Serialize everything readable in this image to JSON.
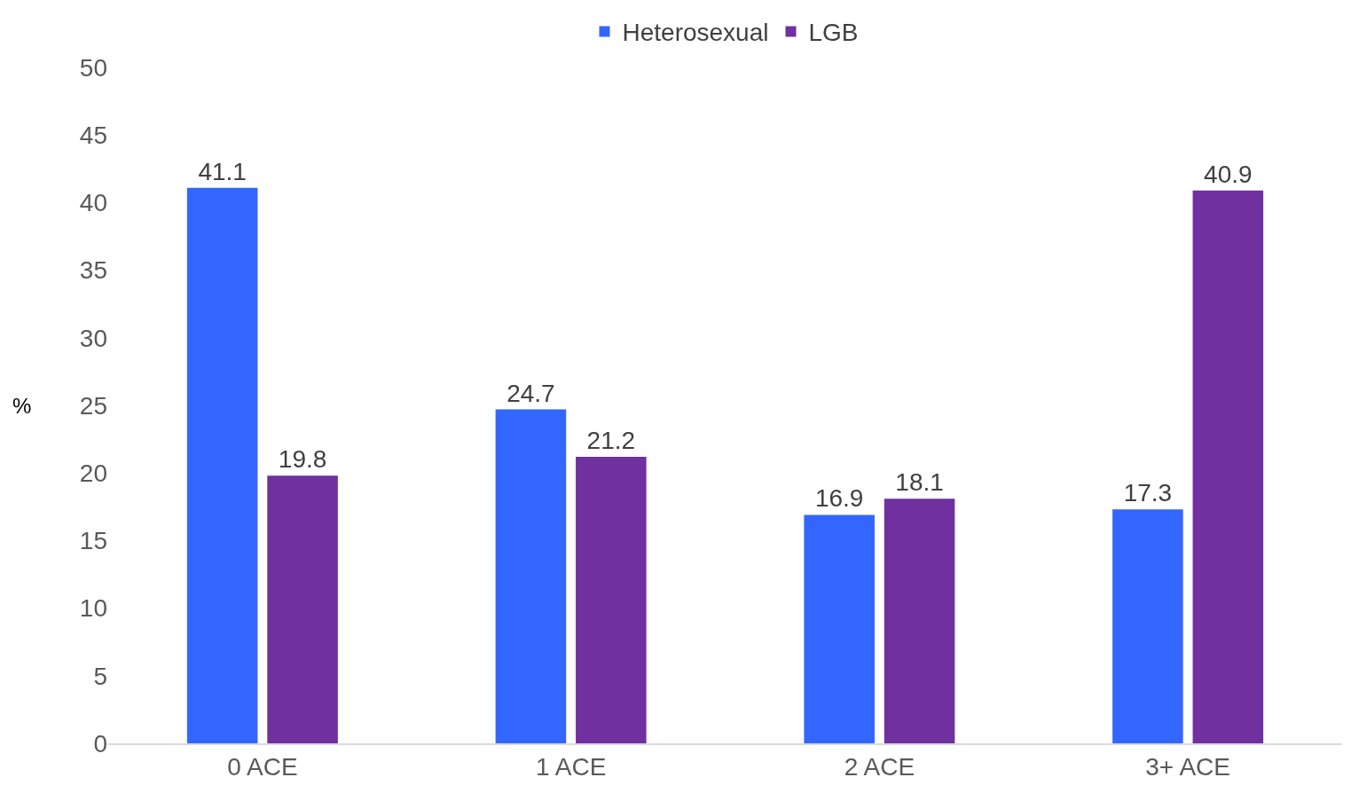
{
  "chart_data": {
    "type": "bar",
    "ylabel": "%",
    "categories": [
      "0 ACE",
      "1 ACE",
      "2 ACE",
      "3+ ACE"
    ],
    "series": [
      {
        "name": "Heterosexual",
        "color": "#3366ff",
        "values": [
          41.1,
          24.7,
          16.9,
          17.3
        ]
      },
      {
        "name": "LGB",
        "color": "#7030a0",
        "values": [
          19.8,
          21.2,
          18.1,
          40.9
        ]
      }
    ],
    "ylim": [
      0,
      50
    ],
    "yticks": [
      0,
      5,
      10,
      15,
      20,
      25,
      30,
      35,
      40,
      45,
      50
    ],
    "grid": false,
    "legend": "top",
    "data_labels": true
  }
}
